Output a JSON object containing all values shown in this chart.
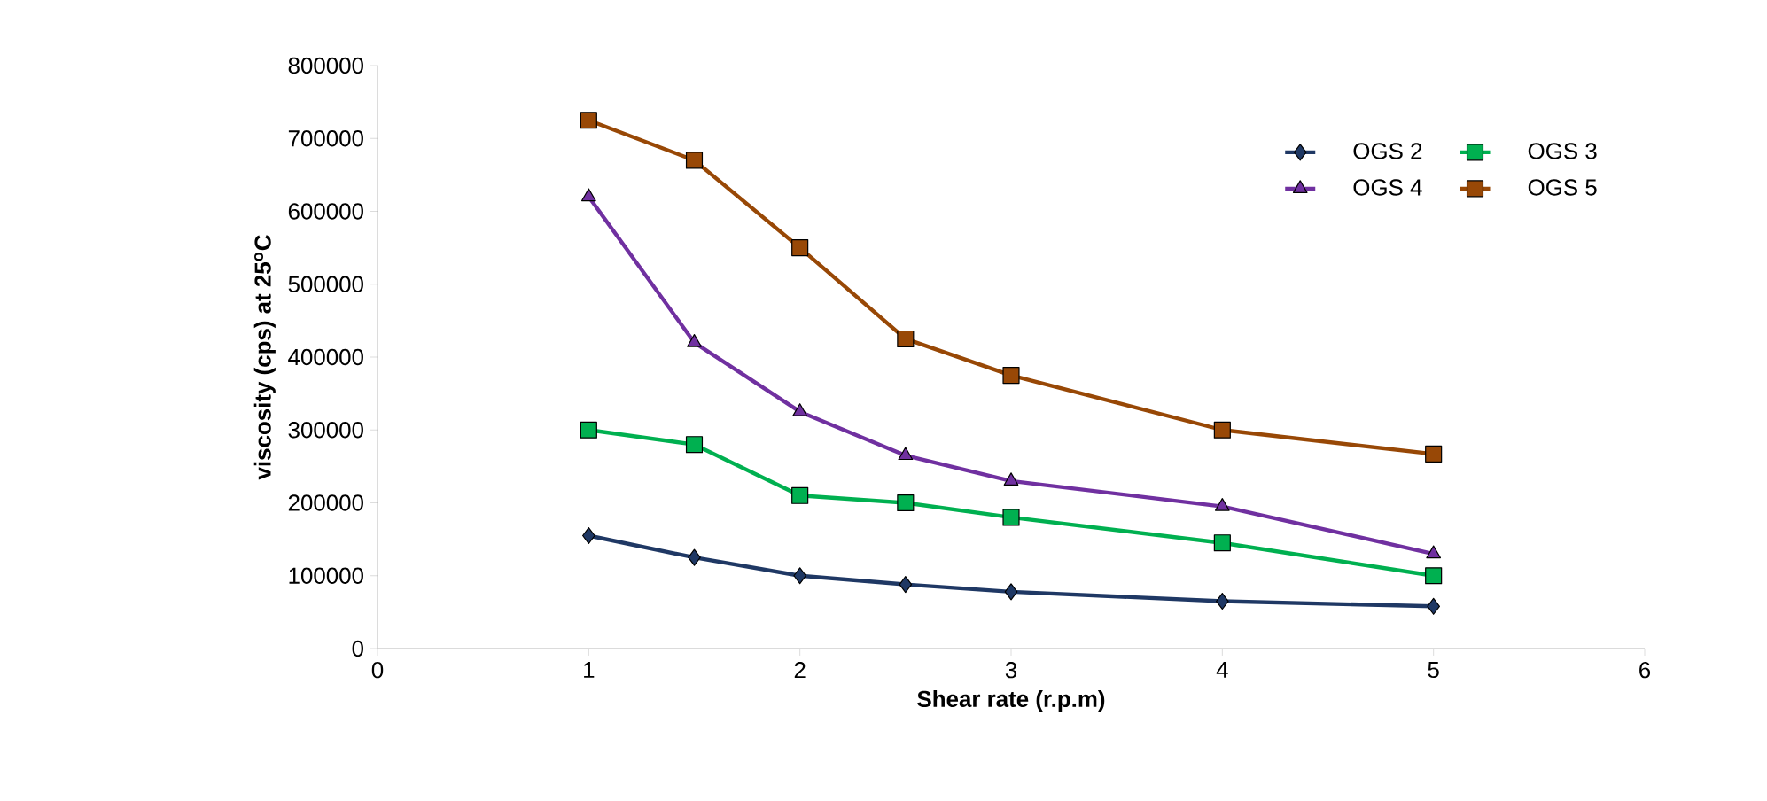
{
  "chart_data": {
    "type": "line",
    "xlabel": "Shear rate (r.p.m)",
    "ylabel": "viscosity (cps) at 25$^{o}$C",
    "x": [
      1,
      1.5,
      2,
      2.5,
      3,
      4,
      5
    ],
    "series": [
      {
        "name": "OGS 2",
        "color": "#1f3864",
        "marker": "diamond",
        "values": [
          155000,
          125000,
          100000,
          88000,
          78000,
          65000,
          58000
        ]
      },
      {
        "name": "OGS 3",
        "color": "#00b050",
        "marker": "square",
        "values": [
          300000,
          280000,
          210000,
          200000,
          180000,
          145000,
          100000
        ]
      },
      {
        "name": "OGS 4",
        "color": "#7030a0",
        "marker": "triangle",
        "values": [
          620000,
          420000,
          325000,
          265000,
          230000,
          195000,
          130000
        ]
      },
      {
        "name": "OGS 5",
        "color": "#984806",
        "marker": "square",
        "values": [
          725000,
          670000,
          550000,
          425000,
          375000,
          300000,
          267000
        ]
      }
    ],
    "xlim": [
      0,
      6
    ],
    "xticks": [
      0,
      1,
      2,
      3,
      4,
      5,
      6
    ],
    "ylim": [
      0,
      800000
    ],
    "yticks": [
      0,
      100000,
      200000,
      300000,
      400000,
      500000,
      600000,
      700000,
      800000
    ],
    "grid": false,
    "legend": "top right",
    "line_style": "solid"
  }
}
